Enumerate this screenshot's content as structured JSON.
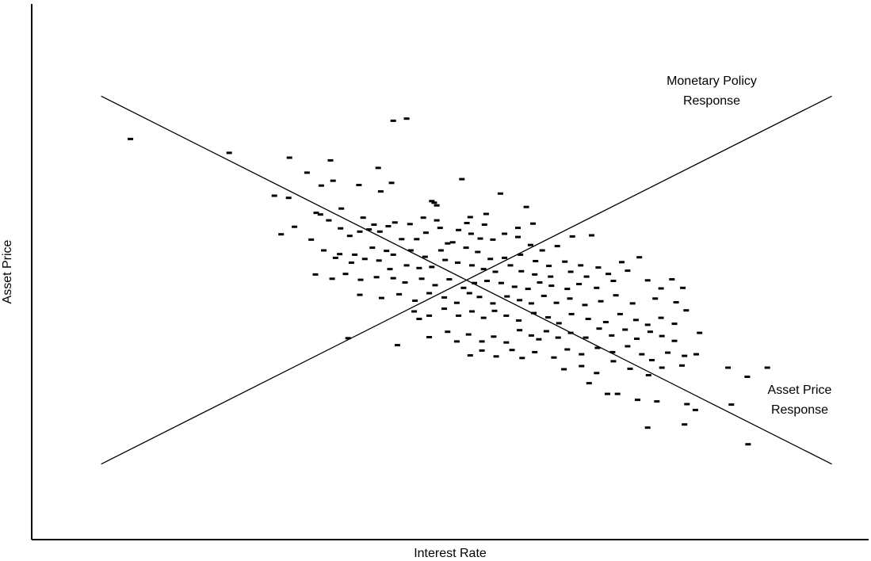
{
  "chart_data": {
    "type": "scatter",
    "title": "",
    "xlabel": "Interest Rate",
    "ylabel": "Asset Price",
    "grid": false,
    "ticks_shown": false,
    "marker": "dash",
    "lines": [
      {
        "name": "Monetary Policy Response",
        "label_lines": [
          "Monetary Policy",
          "Response"
        ],
        "from": [
          0.083,
          0.141
        ],
        "to": [
          0.956,
          0.828
        ]
      },
      {
        "name": "Asset Price Response",
        "label_lines": [
          "Asset Price",
          "Response"
        ],
        "from": [
          0.083,
          0.828
        ],
        "to": [
          0.956,
          0.141
        ]
      }
    ],
    "points": [
      [
        0.118,
        0.748
      ],
      [
        0.236,
        0.722
      ],
      [
        0.432,
        0.782
      ],
      [
        0.448,
        0.786
      ],
      [
        0.308,
        0.713
      ],
      [
        0.357,
        0.708
      ],
      [
        0.414,
        0.694
      ],
      [
        0.329,
        0.685
      ],
      [
        0.346,
        0.661
      ],
      [
        0.307,
        0.638
      ],
      [
        0.29,
        0.642
      ],
      [
        0.36,
        0.67
      ],
      [
        0.391,
        0.662
      ],
      [
        0.417,
        0.65
      ],
      [
        0.43,
        0.666
      ],
      [
        0.514,
        0.673
      ],
      [
        0.56,
        0.646
      ],
      [
        0.591,
        0.621
      ],
      [
        0.478,
        0.632
      ],
      [
        0.481,
        0.629
      ],
      [
        0.484,
        0.624
      ],
      [
        0.524,
        0.602
      ],
      [
        0.543,
        0.608
      ],
      [
        0.541,
        0.588
      ],
      [
        0.52,
        0.591
      ],
      [
        0.484,
        0.596
      ],
      [
        0.468,
        0.601
      ],
      [
        0.452,
        0.589
      ],
      [
        0.434,
        0.592
      ],
      [
        0.409,
        0.588
      ],
      [
        0.396,
        0.601
      ],
      [
        0.37,
        0.618
      ],
      [
        0.345,
        0.607
      ],
      [
        0.34,
        0.61
      ],
      [
        0.355,
        0.596
      ],
      [
        0.369,
        0.581
      ],
      [
        0.38,
        0.567
      ],
      [
        0.392,
        0.575
      ],
      [
        0.403,
        0.579
      ],
      [
        0.416,
        0.575
      ],
      [
        0.426,
        0.585
      ],
      [
        0.442,
        0.561
      ],
      [
        0.46,
        0.561
      ],
      [
        0.471,
        0.573
      ],
      [
        0.488,
        0.582
      ],
      [
        0.497,
        0.553
      ],
      [
        0.51,
        0.578
      ],
      [
        0.525,
        0.571
      ],
      [
        0.536,
        0.562
      ],
      [
        0.551,
        0.56
      ],
      [
        0.565,
        0.571
      ],
      [
        0.581,
        0.582
      ],
      [
        0.599,
        0.59
      ],
      [
        0.581,
        0.565
      ],
      [
        0.596,
        0.55
      ],
      [
        0.61,
        0.54
      ],
      [
        0.628,
        0.548
      ],
      [
        0.646,
        0.566
      ],
      [
        0.669,
        0.568
      ],
      [
        0.298,
        0.57
      ],
      [
        0.314,
        0.584
      ],
      [
        0.334,
        0.56
      ],
      [
        0.349,
        0.54
      ],
      [
        0.368,
        0.533
      ],
      [
        0.386,
        0.532
      ],
      [
        0.407,
        0.545
      ],
      [
        0.424,
        0.539
      ],
      [
        0.432,
        0.532
      ],
      [
        0.453,
        0.54
      ],
      [
        0.47,
        0.528
      ],
      [
        0.489,
        0.54
      ],
      [
        0.503,
        0.555
      ],
      [
        0.519,
        0.545
      ],
      [
        0.533,
        0.537
      ],
      [
        0.548,
        0.524
      ],
      [
        0.565,
        0.526
      ],
      [
        0.584,
        0.532
      ],
      [
        0.602,
        0.52
      ],
      [
        0.618,
        0.511
      ],
      [
        0.637,
        0.519
      ],
      [
        0.656,
        0.512
      ],
      [
        0.677,
        0.508
      ],
      [
        0.705,
        0.518
      ],
      [
        0.726,
        0.527
      ],
      [
        0.363,
        0.526
      ],
      [
        0.382,
        0.517
      ],
      [
        0.398,
        0.524
      ],
      [
        0.415,
        0.521
      ],
      [
        0.428,
        0.505
      ],
      [
        0.448,
        0.512
      ],
      [
        0.463,
        0.507
      ],
      [
        0.478,
        0.509
      ],
      [
        0.494,
        0.522
      ],
      [
        0.509,
        0.517
      ],
      [
        0.526,
        0.512
      ],
      [
        0.54,
        0.505
      ],
      [
        0.554,
        0.5
      ],
      [
        0.572,
        0.512
      ],
      [
        0.585,
        0.501
      ],
      [
        0.601,
        0.495
      ],
      [
        0.62,
        0.491
      ],
      [
        0.644,
        0.5
      ],
      [
        0.663,
        0.491
      ],
      [
        0.689,
        0.496
      ],
      [
        0.712,
        0.502
      ],
      [
        0.339,
        0.495
      ],
      [
        0.359,
        0.487
      ],
      [
        0.375,
        0.496
      ],
      [
        0.393,
        0.485
      ],
      [
        0.412,
        0.49
      ],
      [
        0.432,
        0.488
      ],
      [
        0.446,
        0.48
      ],
      [
        0.466,
        0.487
      ],
      [
        0.482,
        0.475
      ],
      [
        0.499,
        0.486
      ],
      [
        0.516,
        0.47
      ],
      [
        0.529,
        0.479
      ],
      [
        0.544,
        0.483
      ],
      [
        0.561,
        0.479
      ],
      [
        0.577,
        0.472
      ],
      [
        0.593,
        0.468
      ],
      [
        0.607,
        0.48
      ],
      [
        0.621,
        0.474
      ],
      [
        0.64,
        0.468
      ],
      [
        0.654,
        0.477
      ],
      [
        0.675,
        0.47
      ],
      [
        0.695,
        0.483
      ],
      [
        0.736,
        0.484
      ],
      [
        0.752,
        0.469
      ],
      [
        0.765,
        0.486
      ],
      [
        0.778,
        0.47
      ],
      [
        0.392,
        0.457
      ],
      [
        0.418,
        0.451
      ],
      [
        0.439,
        0.458
      ],
      [
        0.458,
        0.446
      ],
      [
        0.475,
        0.46
      ],
      [
        0.493,
        0.452
      ],
      [
        0.508,
        0.442
      ],
      [
        0.523,
        0.46
      ],
      [
        0.535,
        0.453
      ],
      [
        0.551,
        0.441
      ],
      [
        0.568,
        0.454
      ],
      [
        0.583,
        0.447
      ],
      [
        0.597,
        0.441
      ],
      [
        0.612,
        0.455
      ],
      [
        0.627,
        0.442
      ],
      [
        0.643,
        0.45
      ],
      [
        0.661,
        0.438
      ],
      [
        0.68,
        0.445
      ],
      [
        0.698,
        0.456
      ],
      [
        0.718,
        0.441
      ],
      [
        0.745,
        0.45
      ],
      [
        0.77,
        0.443
      ],
      [
        0.782,
        0.428
      ],
      [
        0.457,
        0.426
      ],
      [
        0.475,
        0.418
      ],
      [
        0.493,
        0.431
      ],
      [
        0.51,
        0.418
      ],
      [
        0.526,
        0.426
      ],
      [
        0.54,
        0.414
      ],
      [
        0.553,
        0.427
      ],
      [
        0.567,
        0.418
      ],
      [
        0.582,
        0.409
      ],
      [
        0.6,
        0.423
      ],
      [
        0.617,
        0.415
      ],
      [
        0.63,
        0.404
      ],
      [
        0.645,
        0.421
      ],
      [
        0.665,
        0.412
      ],
      [
        0.686,
        0.406
      ],
      [
        0.703,
        0.421
      ],
      [
        0.722,
        0.41
      ],
      [
        0.736,
        0.401
      ],
      [
        0.752,
        0.414
      ],
      [
        0.768,
        0.403
      ],
      [
        0.378,
        0.376
      ],
      [
        0.437,
        0.363
      ],
      [
        0.475,
        0.378
      ],
      [
        0.497,
        0.388
      ],
      [
        0.508,
        0.37
      ],
      [
        0.522,
        0.383
      ],
      [
        0.538,
        0.37
      ],
      [
        0.552,
        0.379
      ],
      [
        0.567,
        0.368
      ],
      [
        0.583,
        0.391
      ],
      [
        0.597,
        0.381
      ],
      [
        0.606,
        0.374
      ],
      [
        0.615,
        0.389
      ],
      [
        0.629,
        0.377
      ],
      [
        0.644,
        0.386
      ],
      [
        0.662,
        0.377
      ],
      [
        0.678,
        0.394
      ],
      [
        0.693,
        0.381
      ],
      [
        0.709,
        0.392
      ],
      [
        0.723,
        0.375
      ],
      [
        0.739,
        0.388
      ],
      [
        0.753,
        0.38
      ],
      [
        0.768,
        0.371
      ],
      [
        0.798,
        0.386
      ],
      [
        0.463,
        0.412
      ],
      [
        0.524,
        0.344
      ],
      [
        0.538,
        0.353
      ],
      [
        0.555,
        0.342
      ],
      [
        0.574,
        0.354
      ],
      [
        0.586,
        0.339
      ],
      [
        0.601,
        0.35
      ],
      [
        0.624,
        0.34
      ],
      [
        0.64,
        0.355
      ],
      [
        0.657,
        0.346
      ],
      [
        0.676,
        0.358
      ],
      [
        0.694,
        0.35
      ],
      [
        0.712,
        0.361
      ],
      [
        0.729,
        0.346
      ],
      [
        0.741,
        0.335
      ],
      [
        0.76,
        0.349
      ],
      [
        0.777,
        0.325
      ],
      [
        0.794,
        0.346
      ],
      [
        0.636,
        0.318
      ],
      [
        0.657,
        0.324
      ],
      [
        0.675,
        0.311
      ],
      [
        0.695,
        0.333
      ],
      [
        0.715,
        0.319
      ],
      [
        0.737,
        0.307
      ],
      [
        0.753,
        0.321
      ],
      [
        0.78,
        0.343
      ],
      [
        0.832,
        0.321
      ],
      [
        0.855,
        0.304
      ],
      [
        0.879,
        0.321
      ],
      [
        0.666,
        0.292
      ],
      [
        0.688,
        0.272
      ],
      [
        0.7,
        0.272
      ],
      [
        0.724,
        0.261
      ],
      [
        0.747,
        0.258
      ],
      [
        0.783,
        0.253
      ],
      [
        0.793,
        0.242
      ],
      [
        0.836,
        0.252
      ],
      [
        0.736,
        0.209
      ],
      [
        0.78,
        0.215
      ],
      [
        0.856,
        0.178
      ]
    ]
  }
}
